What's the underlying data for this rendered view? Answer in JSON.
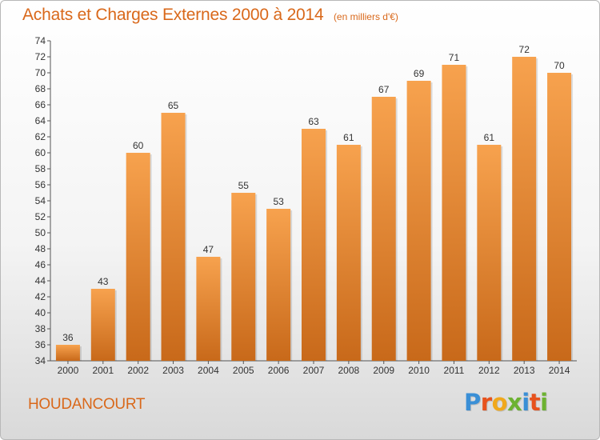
{
  "chart_data": {
    "type": "bar",
    "title": "Achats et Charges Externes 2000 à 2014",
    "unit": "(en milliers d'€)",
    "xlabel": "",
    "ylabel": "",
    "categories": [
      "2000",
      "2001",
      "2002",
      "2003",
      "2004",
      "2005",
      "2006",
      "2007",
      "2008",
      "2009",
      "2010",
      "2011",
      "2012",
      "2013",
      "2014"
    ],
    "values": [
      36,
      43,
      60,
      65,
      47,
      55,
      53,
      63,
      61,
      67,
      69,
      71,
      61,
      72,
      70
    ],
    "ylim": [
      34,
      74
    ],
    "ytick_step": 2,
    "grid": false,
    "bar_color_top": "#f7a24e",
    "bar_color_bottom": "#c8691a"
  },
  "town_name": "HOUDANCOURT",
  "logo": {
    "text": "Proxiti",
    "colors": [
      "#3a8fd6",
      "#e7521d",
      "#f0a81c",
      "#6cb231",
      "#3a8fd6",
      "#e7521d",
      "#6cb231"
    ]
  }
}
